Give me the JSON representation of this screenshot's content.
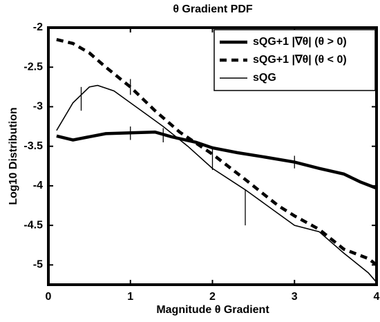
{
  "chart_data": {
    "type": "line",
    "title": "θ Gradient PDF",
    "x_label": "Magnitude θ Gradient",
    "y_label": "Log10 Distribution",
    "xlim": [
      0,
      4
    ],
    "ylim": [
      -5.25,
      -2
    ],
    "xticks": [
      0,
      1,
      2,
      3,
      4
    ],
    "yticks": [
      -2,
      -2.5,
      -3,
      -3.5,
      -4,
      -4.5,
      -5
    ],
    "legend": "top-right",
    "series": [
      {
        "name": "sQG+1 |∇θ| (θ > 0)",
        "color": "#000000",
        "style": "thick",
        "x": [
          0.1,
          0.3,
          0.5,
          0.7,
          1.0,
          1.3,
          1.5,
          1.8,
          2.0,
          2.3,
          2.6,
          3.0,
          3.3,
          3.6,
          3.8,
          4.0
        ],
        "values": [
          -3.37,
          -3.42,
          -3.38,
          -3.34,
          -3.33,
          -3.32,
          -3.38,
          -3.45,
          -3.52,
          -3.58,
          -3.63,
          -3.7,
          -3.78,
          -3.85,
          -3.95,
          -4.03
        ]
      },
      {
        "name": "sQG+1 |∇θ| (θ < 0)",
        "color": "#000000",
        "style": "dashed",
        "x": [
          0.1,
          0.3,
          0.5,
          0.7,
          1.0,
          1.3,
          1.6,
          2.0,
          2.4,
          2.8,
          3.0,
          3.3,
          3.6,
          3.9,
          4.0
        ],
        "values": [
          -2.15,
          -2.2,
          -2.32,
          -2.5,
          -2.75,
          -3.05,
          -3.32,
          -3.6,
          -3.92,
          -4.25,
          -4.38,
          -4.55,
          -4.8,
          -4.92,
          -5.0
        ]
      },
      {
        "name": "sQG",
        "color": "#000000",
        "style": "thin",
        "x": [
          0.1,
          0.3,
          0.5,
          0.6,
          0.8,
          1.0,
          1.2,
          1.4,
          1.7,
          2.0,
          2.4,
          2.8,
          3.0,
          3.3,
          3.6,
          3.9,
          4.0
        ],
        "values": [
          -3.3,
          -2.95,
          -2.75,
          -2.73,
          -2.8,
          -2.95,
          -3.1,
          -3.25,
          -3.5,
          -3.78,
          -4.05,
          -4.35,
          -4.5,
          -4.58,
          -4.85,
          -5.1,
          -5.22
        ]
      }
    ],
    "error_bars": [
      {
        "x": 0.4,
        "low": -3.05,
        "high": -2.75
      },
      {
        "x": 1.0,
        "low": -2.85,
        "high": -2.65
      },
      {
        "x": 1.0,
        "low": -3.42,
        "high": -3.25
      },
      {
        "x": 1.4,
        "low": -3.45,
        "high": -3.27
      },
      {
        "x": 2.0,
        "low": -3.8,
        "high": -3.5
      },
      {
        "x": 2.4,
        "low": -4.5,
        "high": -4.05
      },
      {
        "x": 3.0,
        "low": -3.78,
        "high": -3.62
      }
    ]
  }
}
